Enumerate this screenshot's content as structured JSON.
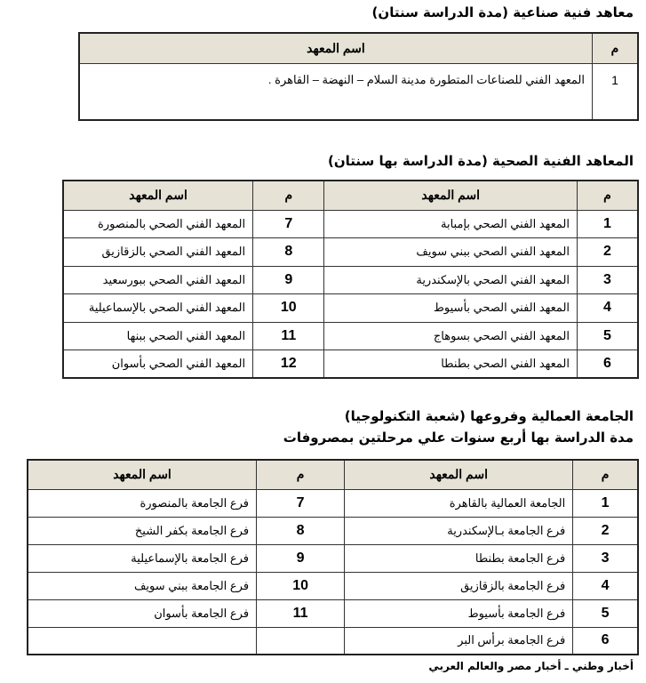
{
  "section1": {
    "title": "معاهد فنية صناعية (مدة الدراسة سنتان)",
    "headers": {
      "num": "م",
      "name": "اسم المعهد"
    },
    "rows": [
      {
        "num": "1",
        "name": "المعهد الفني للصناعات المتطورة مدينة السلام – النهضة – القاهرة ."
      }
    ]
  },
  "section2": {
    "title": "المعاهد الفنية الصحية (مدة الدراسة بها سنتان)",
    "headers": {
      "num": "م",
      "name": "اسم المعهد"
    },
    "rows": [
      {
        "num1": "1",
        "name1": "المعهد الفني الصحي بإمبابة",
        "num2": "7",
        "name2": "المعهد الفني الصحي بالمنصورة"
      },
      {
        "num1": "2",
        "name1": "المعهد الفني الصحي ببني سويف",
        "num2": "8",
        "name2": "المعهد الفني الصحي بالزقازيق"
      },
      {
        "num1": "3",
        "name1": "المعهد الفني الصحي بالإسكندرية",
        "num2": "9",
        "name2": "المعهد الفني الصحي ببورسعيد"
      },
      {
        "num1": "4",
        "name1": "المعهد الفني الصحي بأسيوط",
        "num2": "10",
        "name2": "المعهد الفني الصحي بالإسماعيلية"
      },
      {
        "num1": "5",
        "name1": "المعهد الفني الصحي بسوهاج",
        "num2": "11",
        "name2": "المعهد الفني الصحي ببنها"
      },
      {
        "num1": "6",
        "name1": "المعهد الفني الصحي بطنطا",
        "num2": "12",
        "name2": "المعهد الفني الصحي بأسوان"
      }
    ]
  },
  "section3": {
    "title": "الجامعة العمالية وفروعها (شعبة التكنولوجيا)",
    "subtitle": "مدة الدراسة بها أربع سنوات علي مرحلتين بمصروفات",
    "headers": {
      "num": "م",
      "name": "اسم المعهد"
    },
    "rows": [
      {
        "num1": "1",
        "name1": "الجامعة العمالية بالقاهرة",
        "num2": "7",
        "name2": "فرع الجامعة بالمنصورة"
      },
      {
        "num1": "2",
        "name1": "فرع الجامعة بـالإسكندرية",
        "num2": "8",
        "name2": "فرع الجامعة بكفر الشيخ"
      },
      {
        "num1": "3",
        "name1": "فرع الجامعة بطنطا",
        "num2": "9",
        "name2": "فرع الجامعة بالإسماعيلية"
      },
      {
        "num1": "4",
        "name1": "فرع الجامعة بالزقازيق",
        "num2": "10",
        "name2": "فرع الجامعة ببني سويف"
      },
      {
        "num1": "5",
        "name1": "فرع الجامعة بأسيوط",
        "num2": "11",
        "name2": "فرع الجامعة بأسوان"
      },
      {
        "num1": "6",
        "name1": "فرع الجامعة برأس البر",
        "num2": "",
        "name2": ""
      }
    ]
  },
  "footer": "أخبار وطني ـ أخبار مصر والعالم العربي"
}
